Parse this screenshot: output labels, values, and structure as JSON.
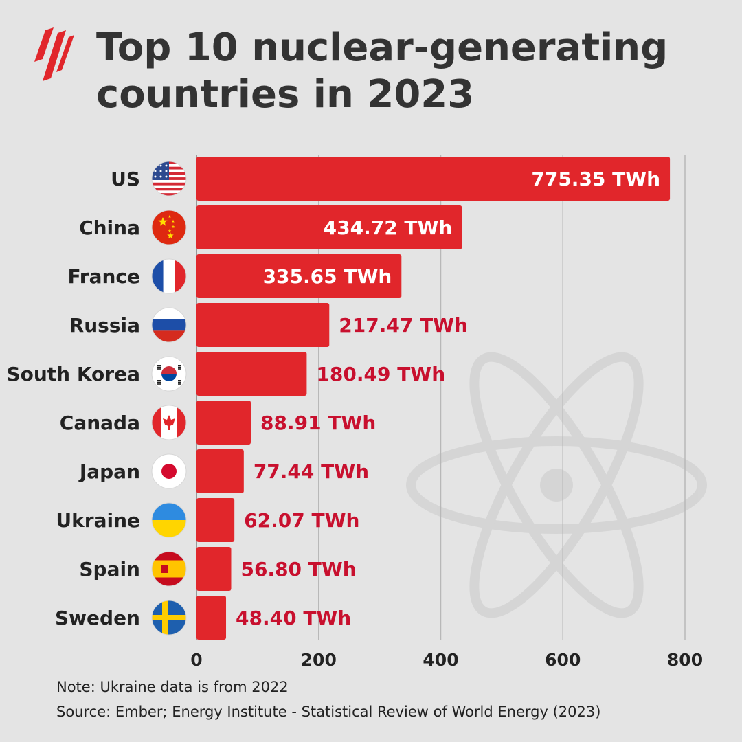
{
  "header": {
    "title_lines": [
      "Top 10 nuclear-generating",
      "countries in 2023"
    ]
  },
  "colors": {
    "background": "#e4e4e4",
    "bar": "#e1262b",
    "label_inside": "#ffffff",
    "label_outside": "#c8102e",
    "text": "#222222",
    "logo": "#e1262b"
  },
  "chart_data": {
    "type": "bar",
    "orientation": "horizontal",
    "categories": [
      "US",
      "China",
      "France",
      "Russia",
      "South Korea",
      "Canada",
      "Japan",
      "Ukraine",
      "Spain",
      "Sweden"
    ],
    "values": [
      775.35,
      434.72,
      335.65,
      217.47,
      180.49,
      88.91,
      77.44,
      62.07,
      56.8,
      48.4
    ],
    "value_labels": [
      "775.35 TWh",
      "434.72 TWh",
      "335.65 TWh",
      "217.47 TWh",
      "180.49 TWh",
      "88.91 TWh",
      "77.44 TWh",
      "62.07 TWh",
      "56.80 TWh",
      "48.40 TWh"
    ],
    "flags": [
      "us-flag-icon",
      "china-flag-icon",
      "france-flag-icon",
      "russia-flag-icon",
      "south-korea-flag-icon",
      "canada-flag-icon",
      "japan-flag-icon",
      "ukraine-flag-icon",
      "spain-flag-icon",
      "sweden-flag-icon"
    ],
    "xlim": [
      0,
      800
    ],
    "xticks": [
      0,
      200,
      400,
      600,
      800
    ],
    "grid": true,
    "title": "Top 10 nuclear-generating countries in 2023",
    "xlabel": "",
    "ylabel": ""
  },
  "footer": {
    "note": "Note: Ukraine data is from 2022",
    "source": "Source: Ember; Energy Institute - Statistical Review of World Energy (2023)"
  },
  "icons": {
    "logo": "sbs-logo-icon",
    "watermark": "atom-icon"
  }
}
